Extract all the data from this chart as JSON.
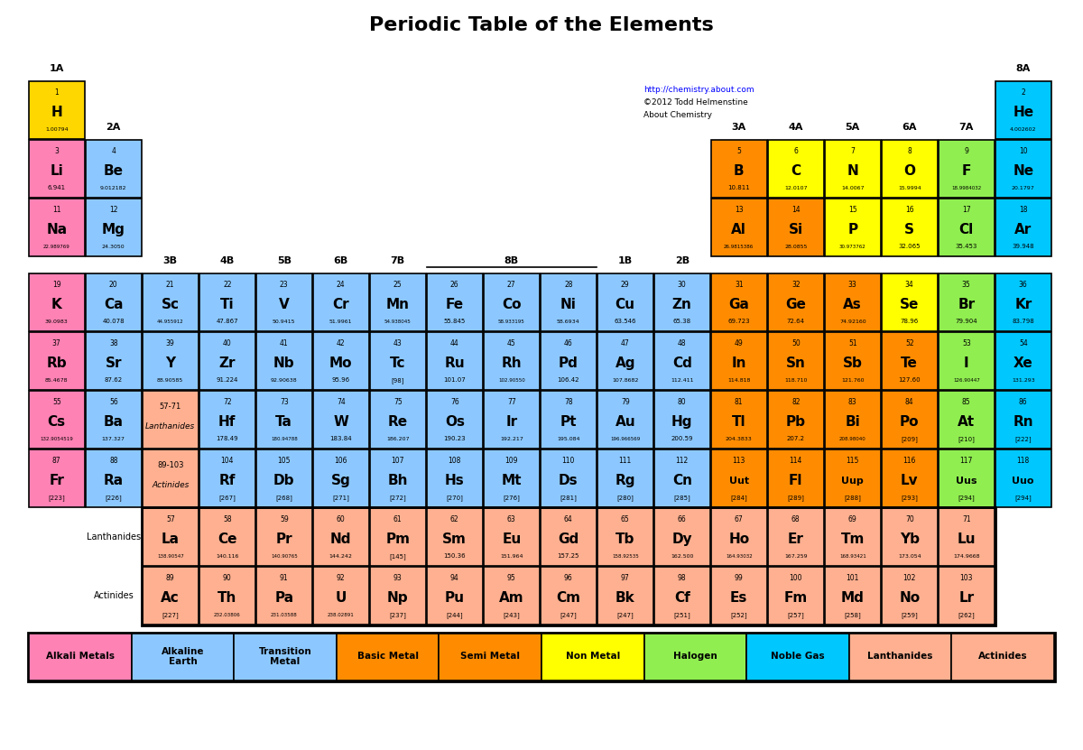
{
  "title": "Periodic Table of the Elements",
  "url_text": "http://chemistry.about.com",
  "credit1": "©2012 Todd Helmenstine",
  "credit2": "About Chemistry",
  "color_map": {
    "hydrogen": "#FFD700",
    "alkali": "#FF82B4",
    "alkaline": "#8CC8FF",
    "transition": "#8CC8FF",
    "basic_metal": "#FF8C00",
    "semi_metal": "#FF8C00",
    "non_metal": "#FFFF00",
    "halogen": "#90EE50",
    "noble_gas": "#00C8FF",
    "lanthanide": "#FFB090",
    "actinide": "#FFB090"
  },
  "elements": [
    {
      "num": "1",
      "sym": "H",
      "mass": "1.00794",
      "col": 0,
      "row": 0,
      "color": "hydrogen"
    },
    {
      "num": "2",
      "sym": "He",
      "mass": "4.002602",
      "col": 17,
      "row": 0,
      "color": "noble_gas"
    },
    {
      "num": "3",
      "sym": "Li",
      "mass": "6.941",
      "col": 0,
      "row": 1,
      "color": "alkali"
    },
    {
      "num": "4",
      "sym": "Be",
      "mass": "9.012182",
      "col": 1,
      "row": 1,
      "color": "alkaline"
    },
    {
      "num": "5",
      "sym": "B",
      "mass": "10.811",
      "col": 12,
      "row": 1,
      "color": "semi_metal"
    },
    {
      "num": "6",
      "sym": "C",
      "mass": "12.0107",
      "col": 13,
      "row": 1,
      "color": "non_metal"
    },
    {
      "num": "7",
      "sym": "N",
      "mass": "14.0067",
      "col": 14,
      "row": 1,
      "color": "non_metal"
    },
    {
      "num": "8",
      "sym": "O",
      "mass": "15.9994",
      "col": 15,
      "row": 1,
      "color": "non_metal"
    },
    {
      "num": "9",
      "sym": "F",
      "mass": "18.9984032",
      "col": 16,
      "row": 1,
      "color": "halogen"
    },
    {
      "num": "10",
      "sym": "Ne",
      "mass": "20.1797",
      "col": 17,
      "row": 1,
      "color": "noble_gas"
    },
    {
      "num": "11",
      "sym": "Na",
      "mass": "22.989769",
      "col": 0,
      "row": 2,
      "color": "alkali"
    },
    {
      "num": "12",
      "sym": "Mg",
      "mass": "24.3050",
      "col": 1,
      "row": 2,
      "color": "alkaline"
    },
    {
      "num": "13",
      "sym": "Al",
      "mass": "26.9815386",
      "col": 12,
      "row": 2,
      "color": "basic_metal"
    },
    {
      "num": "14",
      "sym": "Si",
      "mass": "28.0855",
      "col": 13,
      "row": 2,
      "color": "semi_metal"
    },
    {
      "num": "15",
      "sym": "P",
      "mass": "30.973762",
      "col": 14,
      "row": 2,
      "color": "non_metal"
    },
    {
      "num": "16",
      "sym": "S",
      "mass": "32.065",
      "col": 15,
      "row": 2,
      "color": "non_metal"
    },
    {
      "num": "17",
      "sym": "Cl",
      "mass": "35.453",
      "col": 16,
      "row": 2,
      "color": "halogen"
    },
    {
      "num": "18",
      "sym": "Ar",
      "mass": "39.948",
      "col": 17,
      "row": 2,
      "color": "noble_gas"
    },
    {
      "num": "19",
      "sym": "K",
      "mass": "39.0983",
      "col": 0,
      "row": 3,
      "color": "alkali"
    },
    {
      "num": "20",
      "sym": "Ca",
      "mass": "40.078",
      "col": 1,
      "row": 3,
      "color": "alkaline"
    },
    {
      "num": "21",
      "sym": "Sc",
      "mass": "44.955912",
      "col": 2,
      "row": 3,
      "color": "transition"
    },
    {
      "num": "22",
      "sym": "Ti",
      "mass": "47.867",
      "col": 3,
      "row": 3,
      "color": "transition"
    },
    {
      "num": "23",
      "sym": "V",
      "mass": "50.9415",
      "col": 4,
      "row": 3,
      "color": "transition"
    },
    {
      "num": "24",
      "sym": "Cr",
      "mass": "51.9961",
      "col": 5,
      "row": 3,
      "color": "transition"
    },
    {
      "num": "25",
      "sym": "Mn",
      "mass": "54.938045",
      "col": 6,
      "row": 3,
      "color": "transition"
    },
    {
      "num": "26",
      "sym": "Fe",
      "mass": "55.845",
      "col": 7,
      "row": 3,
      "color": "transition"
    },
    {
      "num": "27",
      "sym": "Co",
      "mass": "58.933195",
      "col": 8,
      "row": 3,
      "color": "transition"
    },
    {
      "num": "28",
      "sym": "Ni",
      "mass": "58.6934",
      "col": 9,
      "row": 3,
      "color": "transition"
    },
    {
      "num": "29",
      "sym": "Cu",
      "mass": "63.546",
      "col": 10,
      "row": 3,
      "color": "transition"
    },
    {
      "num": "30",
      "sym": "Zn",
      "mass": "65.38",
      "col": 11,
      "row": 3,
      "color": "transition"
    },
    {
      "num": "31",
      "sym": "Ga",
      "mass": "69.723",
      "col": 12,
      "row": 3,
      "color": "basic_metal"
    },
    {
      "num": "32",
      "sym": "Ge",
      "mass": "72.64",
      "col": 13,
      "row": 3,
      "color": "semi_metal"
    },
    {
      "num": "33",
      "sym": "As",
      "mass": "74.92160",
      "col": 14,
      "row": 3,
      "color": "semi_metal"
    },
    {
      "num": "34",
      "sym": "Se",
      "mass": "78.96",
      "col": 15,
      "row": 3,
      "color": "non_metal"
    },
    {
      "num": "35",
      "sym": "Br",
      "mass": "79.904",
      "col": 16,
      "row": 3,
      "color": "halogen"
    },
    {
      "num": "36",
      "sym": "Kr",
      "mass": "83.798",
      "col": 17,
      "row": 3,
      "color": "noble_gas"
    },
    {
      "num": "37",
      "sym": "Rb",
      "mass": "85.4678",
      "col": 0,
      "row": 4,
      "color": "alkali"
    },
    {
      "num": "38",
      "sym": "Sr",
      "mass": "87.62",
      "col": 1,
      "row": 4,
      "color": "alkaline"
    },
    {
      "num": "39",
      "sym": "Y",
      "mass": "88.90585",
      "col": 2,
      "row": 4,
      "color": "transition"
    },
    {
      "num": "40",
      "sym": "Zr",
      "mass": "91.224",
      "col": 3,
      "row": 4,
      "color": "transition"
    },
    {
      "num": "41",
      "sym": "Nb",
      "mass": "92.90638",
      "col": 4,
      "row": 4,
      "color": "transition"
    },
    {
      "num": "42",
      "sym": "Mo",
      "mass": "95.96",
      "col": 5,
      "row": 4,
      "color": "transition"
    },
    {
      "num": "43",
      "sym": "Tc",
      "mass": "[98]",
      "col": 6,
      "row": 4,
      "color": "transition"
    },
    {
      "num": "44",
      "sym": "Ru",
      "mass": "101.07",
      "col": 7,
      "row": 4,
      "color": "transition"
    },
    {
      "num": "45",
      "sym": "Rh",
      "mass": "102.90550",
      "col": 8,
      "row": 4,
      "color": "transition"
    },
    {
      "num": "46",
      "sym": "Pd",
      "mass": "106.42",
      "col": 9,
      "row": 4,
      "color": "transition"
    },
    {
      "num": "47",
      "sym": "Ag",
      "mass": "107.8682",
      "col": 10,
      "row": 4,
      "color": "transition"
    },
    {
      "num": "48",
      "sym": "Cd",
      "mass": "112.411",
      "col": 11,
      "row": 4,
      "color": "transition"
    },
    {
      "num": "49",
      "sym": "In",
      "mass": "114.818",
      "col": 12,
      "row": 4,
      "color": "basic_metal"
    },
    {
      "num": "50",
      "sym": "Sn",
      "mass": "118.710",
      "col": 13,
      "row": 4,
      "color": "basic_metal"
    },
    {
      "num": "51",
      "sym": "Sb",
      "mass": "121.760",
      "col": 14,
      "row": 4,
      "color": "semi_metal"
    },
    {
      "num": "52",
      "sym": "Te",
      "mass": "127.60",
      "col": 15,
      "row": 4,
      "color": "semi_metal"
    },
    {
      "num": "53",
      "sym": "I",
      "mass": "126.90447",
      "col": 16,
      "row": 4,
      "color": "halogen"
    },
    {
      "num": "54",
      "sym": "Xe",
      "mass": "131.293",
      "col": 17,
      "row": 4,
      "color": "noble_gas"
    },
    {
      "num": "55",
      "sym": "Cs",
      "mass": "132.9054519",
      "col": 0,
      "row": 5,
      "color": "alkali"
    },
    {
      "num": "56",
      "sym": "Ba",
      "mass": "137.327",
      "col": 1,
      "row": 5,
      "color": "alkaline"
    },
    {
      "num": "57-71",
      "sym": "Lanthanides",
      "mass": "",
      "col": 2,
      "row": 5,
      "color": "lanthanide",
      "placeholder": true
    },
    {
      "num": "72",
      "sym": "Hf",
      "mass": "178.49",
      "col": 3,
      "row": 5,
      "color": "transition"
    },
    {
      "num": "73",
      "sym": "Ta",
      "mass": "180.94788",
      "col": 4,
      "row": 5,
      "color": "transition"
    },
    {
      "num": "74",
      "sym": "W",
      "mass": "183.84",
      "col": 5,
      "row": 5,
      "color": "transition"
    },
    {
      "num": "75",
      "sym": "Re",
      "mass": "186.207",
      "col": 6,
      "row": 5,
      "color": "transition"
    },
    {
      "num": "76",
      "sym": "Os",
      "mass": "190.23",
      "col": 7,
      "row": 5,
      "color": "transition"
    },
    {
      "num": "77",
      "sym": "Ir",
      "mass": "192.217",
      "col": 8,
      "row": 5,
      "color": "transition"
    },
    {
      "num": "78",
      "sym": "Pt",
      "mass": "195.084",
      "col": 9,
      "row": 5,
      "color": "transition"
    },
    {
      "num": "79",
      "sym": "Au",
      "mass": "196.966569",
      "col": 10,
      "row": 5,
      "color": "transition"
    },
    {
      "num": "80",
      "sym": "Hg",
      "mass": "200.59",
      "col": 11,
      "row": 5,
      "color": "transition"
    },
    {
      "num": "81",
      "sym": "Tl",
      "mass": "204.3833",
      "col": 12,
      "row": 5,
      "color": "basic_metal"
    },
    {
      "num": "82",
      "sym": "Pb",
      "mass": "207.2",
      "col": 13,
      "row": 5,
      "color": "basic_metal"
    },
    {
      "num": "83",
      "sym": "Bi",
      "mass": "208.98040",
      "col": 14,
      "row": 5,
      "color": "basic_metal"
    },
    {
      "num": "84",
      "sym": "Po",
      "mass": "[209]",
      "col": 15,
      "row": 5,
      "color": "semi_metal"
    },
    {
      "num": "85",
      "sym": "At",
      "mass": "[210]",
      "col": 16,
      "row": 5,
      "color": "halogen"
    },
    {
      "num": "86",
      "sym": "Rn",
      "mass": "[222]",
      "col": 17,
      "row": 5,
      "color": "noble_gas"
    },
    {
      "num": "87",
      "sym": "Fr",
      "mass": "[223]",
      "col": 0,
      "row": 6,
      "color": "alkali"
    },
    {
      "num": "88",
      "sym": "Ra",
      "mass": "[226]",
      "col": 1,
      "row": 6,
      "color": "alkaline"
    },
    {
      "num": "89-103",
      "sym": "Actinides",
      "mass": "",
      "col": 2,
      "row": 6,
      "color": "actinide",
      "placeholder": true
    },
    {
      "num": "104",
      "sym": "Rf",
      "mass": "[267]",
      "col": 3,
      "row": 6,
      "color": "transition"
    },
    {
      "num": "105",
      "sym": "Db",
      "mass": "[268]",
      "col": 4,
      "row": 6,
      "color": "transition"
    },
    {
      "num": "106",
      "sym": "Sg",
      "mass": "[271]",
      "col": 5,
      "row": 6,
      "color": "transition"
    },
    {
      "num": "107",
      "sym": "Bh",
      "mass": "[272]",
      "col": 6,
      "row": 6,
      "color": "transition"
    },
    {
      "num": "108",
      "sym": "Hs",
      "mass": "[270]",
      "col": 7,
      "row": 6,
      "color": "transition"
    },
    {
      "num": "109",
      "sym": "Mt",
      "mass": "[276]",
      "col": 8,
      "row": 6,
      "color": "transition"
    },
    {
      "num": "110",
      "sym": "Ds",
      "mass": "[281]",
      "col": 9,
      "row": 6,
      "color": "transition"
    },
    {
      "num": "111",
      "sym": "Rg",
      "mass": "[280]",
      "col": 10,
      "row": 6,
      "color": "transition"
    },
    {
      "num": "112",
      "sym": "Cn",
      "mass": "[285]",
      "col": 11,
      "row": 6,
      "color": "transition"
    },
    {
      "num": "113",
      "sym": "Uut",
      "mass": "[284]",
      "col": 12,
      "row": 6,
      "color": "basic_metal"
    },
    {
      "num": "114",
      "sym": "Fl",
      "mass": "[289]",
      "col": 13,
      "row": 6,
      "color": "basic_metal"
    },
    {
      "num": "115",
      "sym": "Uup",
      "mass": "[288]",
      "col": 14,
      "row": 6,
      "color": "basic_metal"
    },
    {
      "num": "116",
      "sym": "Lv",
      "mass": "[293]",
      "col": 15,
      "row": 6,
      "color": "basic_metal"
    },
    {
      "num": "117",
      "sym": "Uus",
      "mass": "[294]",
      "col": 16,
      "row": 6,
      "color": "halogen"
    },
    {
      "num": "118",
      "sym": "Uuo",
      "mass": "[294]",
      "col": 17,
      "row": 6,
      "color": "noble_gas"
    },
    {
      "num": "57",
      "sym": "La",
      "mass": "138.90547",
      "col": 2,
      "row": 8,
      "color": "lanthanide"
    },
    {
      "num": "58",
      "sym": "Ce",
      "mass": "140.116",
      "col": 3,
      "row": 8,
      "color": "lanthanide"
    },
    {
      "num": "59",
      "sym": "Pr",
      "mass": "140.90765",
      "col": 4,
      "row": 8,
      "color": "lanthanide"
    },
    {
      "num": "60",
      "sym": "Nd",
      "mass": "144.242",
      "col": 5,
      "row": 8,
      "color": "lanthanide"
    },
    {
      "num": "61",
      "sym": "Pm",
      "mass": "[145]",
      "col": 6,
      "row": 8,
      "color": "lanthanide"
    },
    {
      "num": "62",
      "sym": "Sm",
      "mass": "150.36",
      "col": 7,
      "row": 8,
      "color": "lanthanide"
    },
    {
      "num": "63",
      "sym": "Eu",
      "mass": "151.964",
      "col": 8,
      "row": 8,
      "color": "lanthanide"
    },
    {
      "num": "64",
      "sym": "Gd",
      "mass": "157.25",
      "col": 9,
      "row": 8,
      "color": "lanthanide"
    },
    {
      "num": "65",
      "sym": "Tb",
      "mass": "158.92535",
      "col": 10,
      "row": 8,
      "color": "lanthanide"
    },
    {
      "num": "66",
      "sym": "Dy",
      "mass": "162.500",
      "col": 11,
      "row": 8,
      "color": "lanthanide"
    },
    {
      "num": "67",
      "sym": "Ho",
      "mass": "164.93032",
      "col": 12,
      "row": 8,
      "color": "lanthanide"
    },
    {
      "num": "68",
      "sym": "Er",
      "mass": "167.259",
      "col": 13,
      "row": 8,
      "color": "lanthanide"
    },
    {
      "num": "69",
      "sym": "Tm",
      "mass": "168.93421",
      "col": 14,
      "row": 8,
      "color": "lanthanide"
    },
    {
      "num": "70",
      "sym": "Yb",
      "mass": "173.054",
      "col": 15,
      "row": 8,
      "color": "lanthanide"
    },
    {
      "num": "71",
      "sym": "Lu",
      "mass": "174.9668",
      "col": 16,
      "row": 8,
      "color": "lanthanide"
    },
    {
      "num": "89",
      "sym": "Ac",
      "mass": "[227]",
      "col": 2,
      "row": 9,
      "color": "actinide"
    },
    {
      "num": "90",
      "sym": "Th",
      "mass": "232.03806",
      "col": 3,
      "row": 9,
      "color": "actinide"
    },
    {
      "num": "91",
      "sym": "Pa",
      "mass": "231.03588",
      "col": 4,
      "row": 9,
      "color": "actinide"
    },
    {
      "num": "92",
      "sym": "U",
      "mass": "238.02891",
      "col": 5,
      "row": 9,
      "color": "actinide"
    },
    {
      "num": "93",
      "sym": "Np",
      "mass": "[237]",
      "col": 6,
      "row": 9,
      "color": "actinide"
    },
    {
      "num": "94",
      "sym": "Pu",
      "mass": "[244]",
      "col": 7,
      "row": 9,
      "color": "actinide"
    },
    {
      "num": "95",
      "sym": "Am",
      "mass": "[243]",
      "col": 8,
      "row": 9,
      "color": "actinide"
    },
    {
      "num": "96",
      "sym": "Cm",
      "mass": "[247]",
      "col": 9,
      "row": 9,
      "color": "actinide"
    },
    {
      "num": "97",
      "sym": "Bk",
      "mass": "[247]",
      "col": 10,
      "row": 9,
      "color": "actinide"
    },
    {
      "num": "98",
      "sym": "Cf",
      "mass": "[251]",
      "col": 11,
      "row": 9,
      "color": "actinide"
    },
    {
      "num": "99",
      "sym": "Es",
      "mass": "[252]",
      "col": 12,
      "row": 9,
      "color": "actinide"
    },
    {
      "num": "100",
      "sym": "Fm",
      "mass": "[257]",
      "col": 13,
      "row": 9,
      "color": "actinide"
    },
    {
      "num": "101",
      "sym": "Md",
      "mass": "[258]",
      "col": 14,
      "row": 9,
      "color": "actinide"
    },
    {
      "num": "102",
      "sym": "No",
      "mass": "[259]",
      "col": 15,
      "row": 9,
      "color": "actinide"
    },
    {
      "num": "103",
      "sym": "Lr",
      "mass": "[262]",
      "col": 16,
      "row": 9,
      "color": "actinide"
    }
  ],
  "legend": [
    {
      "label": "Alkali Metals",
      "color": "#FF82B4"
    },
    {
      "label": "Alkaline\nEarth",
      "color": "#8CC8FF"
    },
    {
      "label": "Transition\nMetal",
      "color": "#8CC8FF"
    },
    {
      "label": "Basic Metal",
      "color": "#FF8C00"
    },
    {
      "label": "Semi Metal",
      "color": "#FF8C00"
    },
    {
      "label": "Non Metal",
      "color": "#FFFF00"
    },
    {
      "label": "Halogen",
      "color": "#90EE50"
    },
    {
      "label": "Noble Gas",
      "color": "#00C8FF"
    },
    {
      "label": "Lanthanides",
      "color": "#FFB090"
    },
    {
      "label": "Actinides",
      "color": "#FFB090"
    }
  ]
}
